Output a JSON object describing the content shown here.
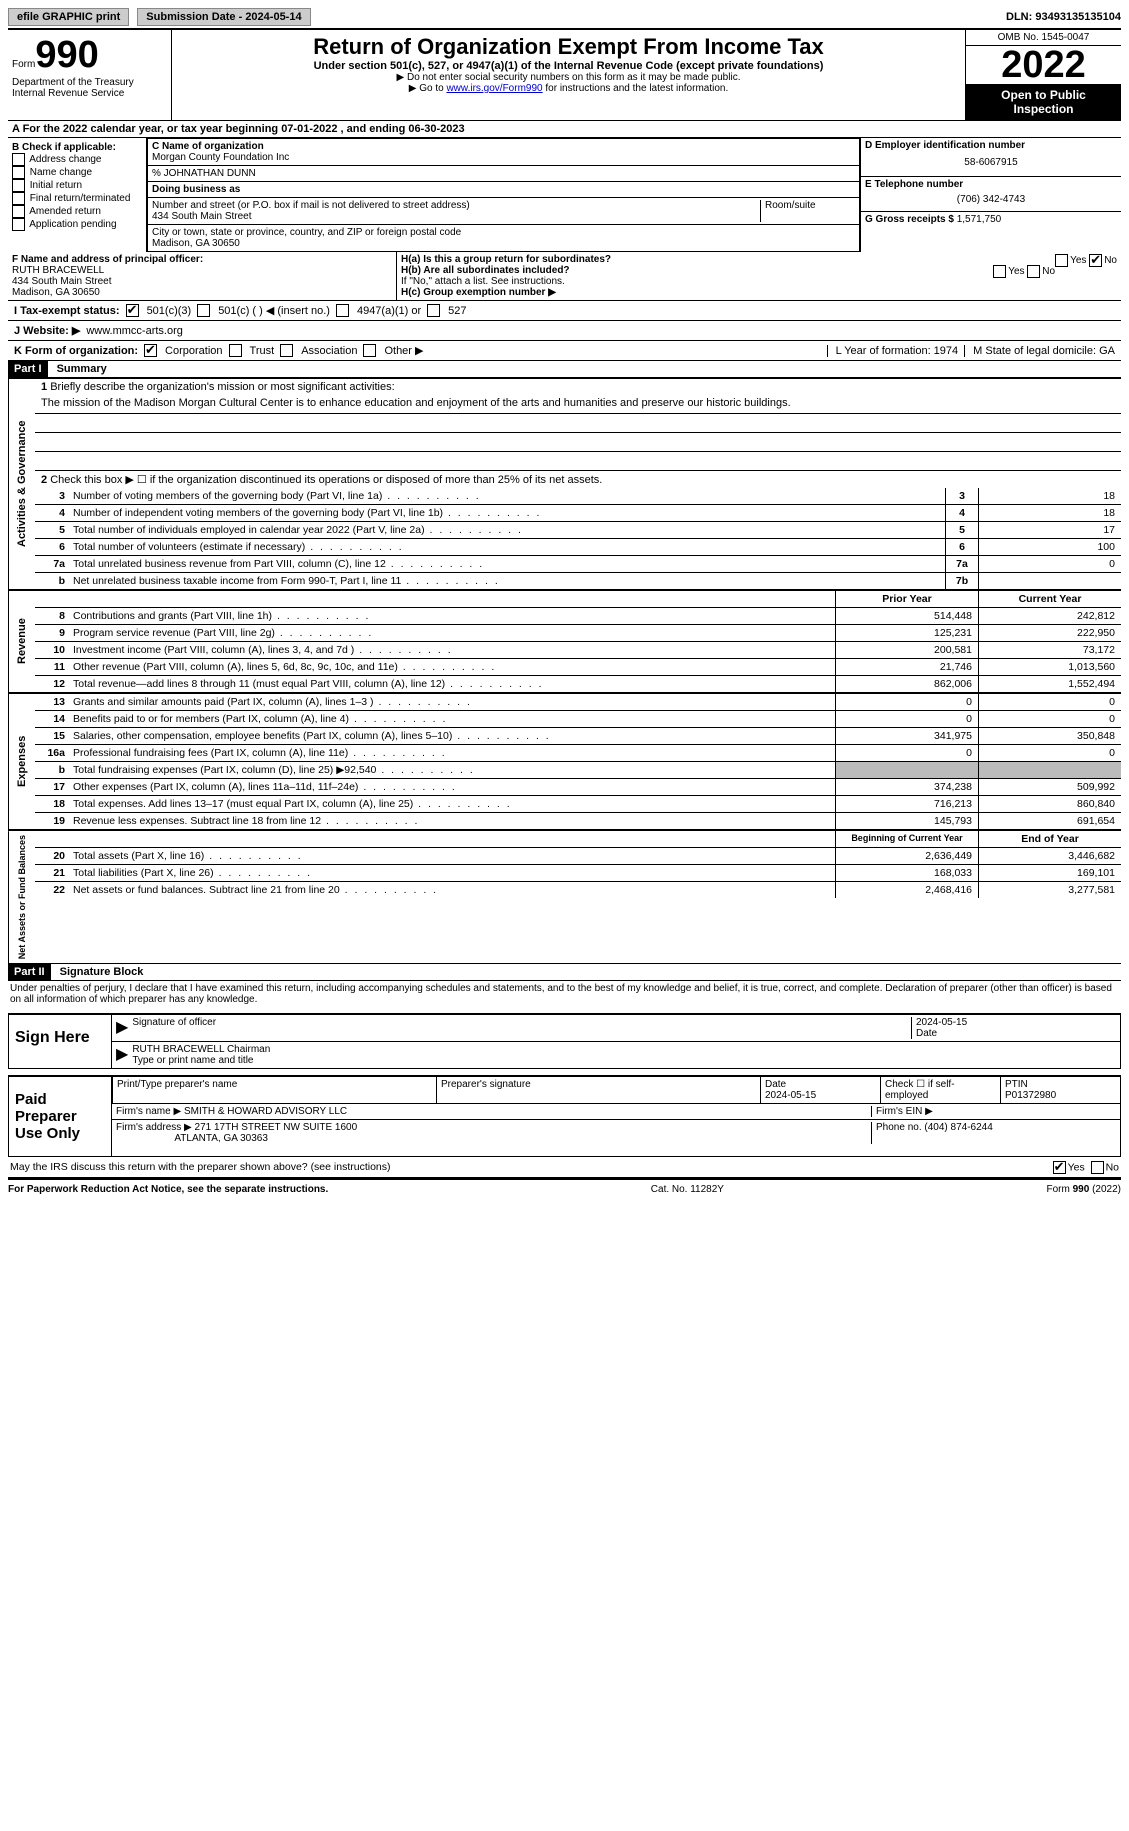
{
  "top": {
    "efile": "efile GRAPHIC print",
    "submission": "Submission Date - 2024-05-14",
    "dln": "DLN: 93493135135104"
  },
  "header": {
    "form_word": "Form",
    "form_num": "990",
    "dept": "Department of the Treasury",
    "irs": "Internal Revenue Service",
    "title": "Return of Organization Exempt From Income Tax",
    "sub": "Under section 501(c), 527, or 4947(a)(1) of the Internal Revenue Code (except private foundations)",
    "note1": "▶ Do not enter social security numbers on this form as it may be made public.",
    "note2_pre": "▶ Go to ",
    "note2_link": "www.irs.gov/Form990",
    "note2_post": " for instructions and the latest information.",
    "omb": "OMB No. 1545-0047",
    "year": "2022",
    "open": "Open to Public Inspection"
  },
  "row_a": "A For the 2022 calendar year, or tax year beginning 07-01-2022   , and ending 06-30-2023",
  "col_b": {
    "label": "B Check if applicable:",
    "items": [
      "Address change",
      "Name change",
      "Initial return",
      "Final return/terminated",
      "Amended return",
      "Application pending"
    ]
  },
  "col_c": {
    "name_label": "C Name of organization",
    "name": "Morgan County Foundation Inc",
    "care_of": "% JOHNATHAN DUNN",
    "dba_label": "Doing business as",
    "street_label": "Number and street (or P.O. box if mail is not delivered to street address)",
    "room_label": "Room/suite",
    "street": "434 South Main Street",
    "city_label": "City or town, state or province, country, and ZIP or foreign postal code",
    "city": "Madison, GA  30650"
  },
  "col_d": {
    "ein_label": "D Employer identification number",
    "ein": "58-6067915",
    "tel_label": "E Telephone number",
    "tel": "(706) 342-4743",
    "gross_label": "G Gross receipts $",
    "gross": "1,571,750"
  },
  "section_f": {
    "f_label": "F  Name and address of principal officer:",
    "f_name": "RUTH BRACEWELL",
    "f_addr1": "434 South Main Street",
    "f_addr2": "Madison, GA  30650",
    "ha": "H(a)  Is this a group return for subordinates?",
    "hb": "H(b)  Are all subordinates included?",
    "hb_note": "If \"No,\" attach a list. See instructions.",
    "hc": "H(c)  Group exemption number ▶",
    "yes": "Yes",
    "no": "No"
  },
  "row_i": {
    "label": "I   Tax-exempt status:",
    "o1": "501(c)(3)",
    "o2": "501(c) (  ) ◀ (insert no.)",
    "o3": "4947(a)(1) or",
    "o4": "527"
  },
  "row_j": {
    "label": "J   Website: ▶",
    "val": "www.mmcc-arts.org"
  },
  "row_k": {
    "label": "K Form of organization:",
    "corp": "Corporation",
    "trust": "Trust",
    "assoc": "Association",
    "other": "Other ▶",
    "l": "L Year of formation: 1974",
    "m": "M State of legal domicile: GA"
  },
  "part1": {
    "header": "Part I",
    "title": "Summary",
    "q1": "Briefly describe the organization's mission or most significant activities:",
    "mission": "The mission of the Madison Morgan Cultural Center is to enhance education and enjoyment of the arts and humanities and preserve our historic buildings.",
    "q2": "Check this box ▶ ☐  if the organization discontinued its operations or disposed of more than 25% of its net assets.",
    "lines_top": [
      {
        "n": "3",
        "d": "Number of voting members of the governing body (Part VI, line 1a)",
        "b": "3",
        "v": "18"
      },
      {
        "n": "4",
        "d": "Number of independent voting members of the governing body (Part VI, line 1b)",
        "b": "4",
        "v": "18"
      },
      {
        "n": "5",
        "d": "Total number of individuals employed in calendar year 2022 (Part V, line 2a)",
        "b": "5",
        "v": "17"
      },
      {
        "n": "6",
        "d": "Total number of volunteers (estimate if necessary)",
        "b": "6",
        "v": "100"
      },
      {
        "n": "7a",
        "d": "Total unrelated business revenue from Part VIII, column (C), line 12",
        "b": "7a",
        "v": "0"
      },
      {
        "n": "b",
        "d": "Net unrelated business taxable income from Form 990-T, Part I, line 11",
        "b": "7b",
        "v": ""
      }
    ],
    "col_prior": "Prior Year",
    "col_curr": "Current Year",
    "revenue_label": "Revenue",
    "revenue": [
      {
        "n": "8",
        "d": "Contributions and grants (Part VIII, line 1h)",
        "p": "514,448",
        "c": "242,812"
      },
      {
        "n": "9",
        "d": "Program service revenue (Part VIII, line 2g)",
        "p": "125,231",
        "c": "222,950"
      },
      {
        "n": "10",
        "d": "Investment income (Part VIII, column (A), lines 3, 4, and 7d )",
        "p": "200,581",
        "c": "73,172"
      },
      {
        "n": "11",
        "d": "Other revenue (Part VIII, column (A), lines 5, 6d, 8c, 9c, 10c, and 11e)",
        "p": "21,746",
        "c": "1,013,560"
      },
      {
        "n": "12",
        "d": "Total revenue—add lines 8 through 11 (must equal Part VIII, column (A), line 12)",
        "p": "862,006",
        "c": "1,552,494"
      }
    ],
    "expenses_label": "Expenses",
    "expenses": [
      {
        "n": "13",
        "d": "Grants and similar amounts paid (Part IX, column (A), lines 1–3 )",
        "p": "0",
        "c": "0"
      },
      {
        "n": "14",
        "d": "Benefits paid to or for members (Part IX, column (A), line 4)",
        "p": "0",
        "c": "0"
      },
      {
        "n": "15",
        "d": "Salaries, other compensation, employee benefits (Part IX, column (A), lines 5–10)",
        "p": "341,975",
        "c": "350,848"
      },
      {
        "n": "16a",
        "d": "Professional fundraising fees (Part IX, column (A), line 11e)",
        "p": "0",
        "c": "0"
      },
      {
        "n": "b",
        "d": "Total fundraising expenses (Part IX, column (D), line 25) ▶92,540",
        "p": "shaded",
        "c": "shaded"
      },
      {
        "n": "17",
        "d": "Other expenses (Part IX, column (A), lines 11a–11d, 11f–24e)",
        "p": "374,238",
        "c": "509,992"
      },
      {
        "n": "18",
        "d": "Total expenses. Add lines 13–17 (must equal Part IX, column (A), line 25)",
        "p": "716,213",
        "c": "860,840"
      },
      {
        "n": "19",
        "d": "Revenue less expenses. Subtract line 18 from line 12",
        "p": "145,793",
        "c": "691,654"
      }
    ],
    "net_label": "Net Assets or Fund Balances",
    "col_begin": "Beginning of Current Year",
    "col_end": "End of Year",
    "net": [
      {
        "n": "20",
        "d": "Total assets (Part X, line 16)",
        "p": "2,636,449",
        "c": "3,446,682"
      },
      {
        "n": "21",
        "d": "Total liabilities (Part X, line 26)",
        "p": "168,033",
        "c": "169,101"
      },
      {
        "n": "22",
        "d": "Net assets or fund balances. Subtract line 21 from line 20",
        "p": "2,468,416",
        "c": "3,277,581"
      }
    ],
    "activities_label": "Activities & Governance"
  },
  "part2": {
    "header": "Part II",
    "title": "Signature Block",
    "jurat": "Under penalties of perjury, I declare that I have examined this return, including accompanying schedules and statements, and to the best of my knowledge and belief, it is true, correct, and complete. Declaration of preparer (other than officer) is based on all information of which preparer has any knowledge.",
    "sign_here": "Sign Here",
    "sig_officer": "Signature of officer",
    "sig_date": "2024-05-15",
    "date_label": "Date",
    "officer_name": "RUTH BRACEWELL Chairman",
    "type_name": "Type or print name and title",
    "paid": "Paid Preparer Use Only",
    "pp_name_label": "Print/Type preparer's name",
    "pp_sig_label": "Preparer's signature",
    "pp_date_label": "Date",
    "pp_date": "2024-05-15",
    "pp_check": "Check ☐ if self-employed",
    "ptin_label": "PTIN",
    "ptin": "P01372980",
    "firm_name_label": "Firm's name    ▶",
    "firm_name": "SMITH & HOWARD ADVISORY LLC",
    "firm_ein_label": "Firm's EIN ▶",
    "firm_addr_label": "Firm's address ▶",
    "firm_addr": "271 17TH STREET NW SUITE 1600",
    "firm_city": "ATLANTA, GA  30363",
    "firm_phone_label": "Phone no.",
    "firm_phone": "(404) 874-6244",
    "discuss": "May the IRS discuss this return with the preparer shown above? (see instructions)"
  },
  "footer": {
    "left": "For Paperwork Reduction Act Notice, see the separate instructions.",
    "mid": "Cat. No. 11282Y",
    "right": "Form 990 (2022)"
  }
}
